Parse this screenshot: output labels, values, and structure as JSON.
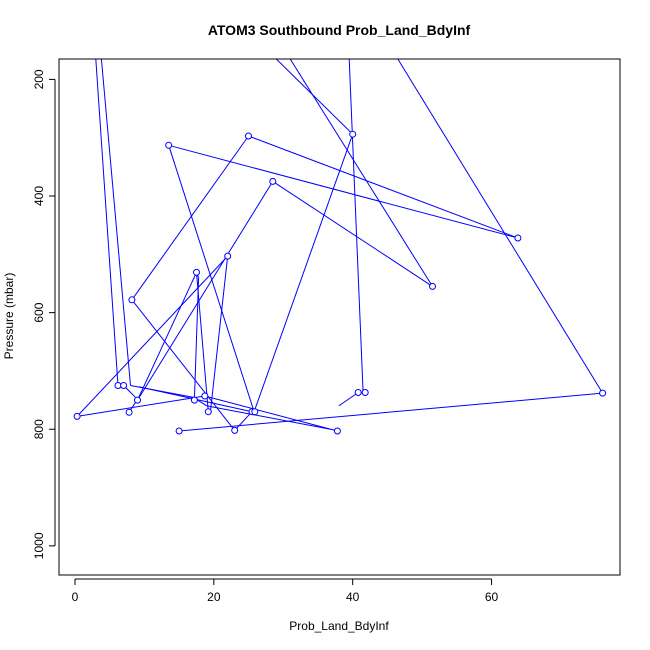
{
  "chart_data": {
    "type": "line",
    "title": "ATOM3 Southbound Prob_Land_BdyInf",
    "xlabel": "Prob_Land_BdyInf",
    "ylabel": "Pressure (mbar)",
    "xlim": [
      -2.3,
      78.5
    ],
    "ylim": [
      1050,
      165
    ],
    "y_reversed": true,
    "x_ticks": [
      0,
      20,
      40,
      60
    ],
    "y_ticks": [
      200,
      400,
      600,
      800,
      1000
    ],
    "x_tick_labels": [
      "0",
      "20",
      "40",
      "60"
    ],
    "y_tick_labels": [
      "200",
      "400",
      "600",
      "800",
      "1000"
    ],
    "grid": false,
    "legend": "none",
    "series_color": "#0000ff",
    "marker": "open-circle",
    "segments": [
      [
        [
          3.0,
          165
        ],
        [
          6.2,
          725
        ]
      ],
      [
        [
          6.2,
          725
        ],
        [
          7.0,
          725
        ]
      ],
      [
        [
          7.0,
          725
        ],
        [
          8.7,
          745
        ]
      ],
      [
        [
          3.8,
          165
        ],
        [
          8.0,
          725
        ]
      ],
      [
        [
          8.0,
          725
        ],
        [
          17.0,
          745
        ]
      ],
      [
        [
          17.0,
          745
        ],
        [
          19.0,
          760
        ]
      ],
      [
        [
          19.0,
          760
        ],
        [
          36.8,
          800
        ]
      ],
      [
        [
          8.2,
          578
        ],
        [
          25.0,
          297
        ]
      ],
      [
        [
          25.0,
          297
        ],
        [
          63.8,
          472
        ]
      ],
      [
        [
          63.8,
          472
        ],
        [
          13.5,
          313
        ]
      ],
      [
        [
          13.5,
          313
        ],
        [
          25.8,
          770
        ]
      ],
      [
        [
          25.8,
          770
        ],
        [
          40.0,
          294
        ]
      ],
      [
        [
          40.0,
          294
        ],
        [
          29.0,
          165
        ]
      ],
      [
        [
          8.2,
          578
        ],
        [
          23.0,
          802
        ]
      ],
      [
        [
          23.0,
          802
        ],
        [
          25.5,
          770
        ]
      ],
      [
        [
          25.5,
          770
        ],
        [
          9.2,
          727
        ]
      ],
      [
        [
          9.0,
          750
        ],
        [
          28.5,
          375
        ]
      ],
      [
        [
          28.5,
          375
        ],
        [
          51.5,
          555
        ]
      ],
      [
        [
          51.5,
          555
        ],
        [
          31.0,
          165
        ]
      ],
      [
        [
          9.0,
          750
        ],
        [
          17.5,
          531
        ]
      ],
      [
        [
          17.5,
          531
        ],
        [
          19.2,
          770
        ]
      ],
      [
        [
          17.2,
          750
        ],
        [
          17.8,
          540
        ]
      ],
      [
        [
          17.8,
          540
        ],
        [
          17.5,
          531
        ]
      ],
      [
        [
          0.3,
          778
        ],
        [
          22.0,
          503
        ]
      ],
      [
        [
          22.0,
          503
        ],
        [
          19.5,
          770
        ]
      ],
      [
        [
          0.3,
          778
        ],
        [
          18.7,
          743
        ]
      ],
      [
        [
          18.7,
          743
        ],
        [
          37.8,
          803
        ]
      ],
      [
        [
          7.8,
          771
        ],
        [
          9.2,
          745
        ]
      ],
      [
        [
          15.0,
          803
        ],
        [
          76.0,
          738
        ]
      ],
      [
        [
          76.0,
          738
        ],
        [
          46.5,
          165
        ]
      ],
      [
        [
          41.8,
          737
        ],
        [
          40.8,
          737
        ]
      ],
      [
        [
          40.8,
          737
        ],
        [
          38.0,
          760
        ]
      ],
      [
        [
          41.5,
          737
        ],
        [
          39.5,
          165
        ]
      ]
    ],
    "points": [
      {
        "x": 6.2,
        "y": 725
      },
      {
        "x": 7.0,
        "y": 725
      },
      {
        "x": 8.2,
        "y": 578
      },
      {
        "x": 25.0,
        "y": 297
      },
      {
        "x": 40.0,
        "y": 294
      },
      {
        "x": 13.5,
        "y": 313
      },
      {
        "x": 28.5,
        "y": 375
      },
      {
        "x": 63.8,
        "y": 472
      },
      {
        "x": 51.5,
        "y": 555
      },
      {
        "x": 22.0,
        "y": 503
      },
      {
        "x": 17.5,
        "y": 531
      },
      {
        "x": 0.3,
        "y": 778
      },
      {
        "x": 7.8,
        "y": 771
      },
      {
        "x": 9.0,
        "y": 750
      },
      {
        "x": 17.2,
        "y": 750
      },
      {
        "x": 18.7,
        "y": 743
      },
      {
        "x": 19.2,
        "y": 770
      },
      {
        "x": 25.5,
        "y": 770
      },
      {
        "x": 25.9,
        "y": 770
      },
      {
        "x": 23.0,
        "y": 802
      },
      {
        "x": 15.0,
        "y": 803
      },
      {
        "x": 37.8,
        "y": 803
      },
      {
        "x": 40.8,
        "y": 737
      },
      {
        "x": 41.8,
        "y": 737
      },
      {
        "x": 76.0,
        "y": 738
      }
    ]
  }
}
